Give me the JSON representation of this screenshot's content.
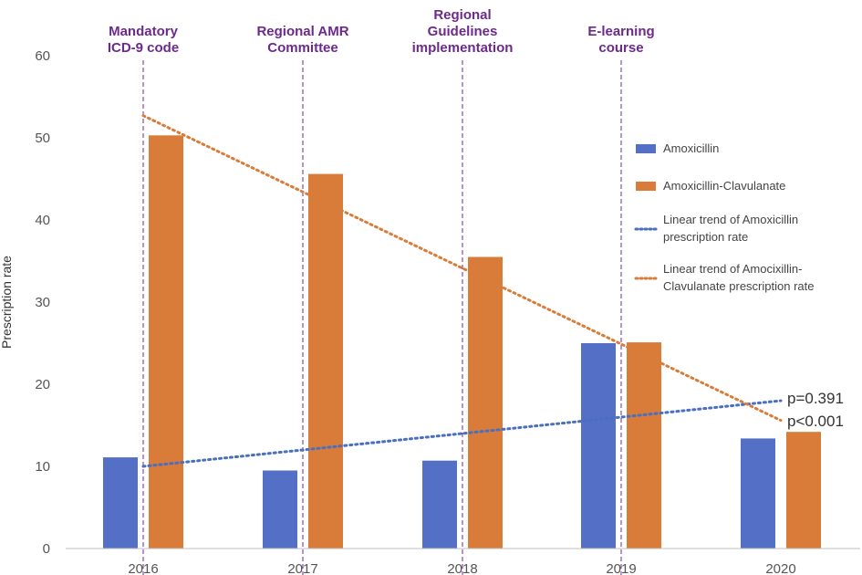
{
  "chart_data": {
    "type": "bar",
    "categories": [
      "2016",
      "2017",
      "2018",
      "2019",
      "2020"
    ],
    "series": [
      {
        "name": "Amoxicillin",
        "color": "#5470c6",
        "values": [
          11.1,
          9.5,
          10.7,
          25.0,
          13.4
        ]
      },
      {
        "name": "Amoxicillin-Clavulanate",
        "color": "#d97c3a",
        "values": [
          50.3,
          45.6,
          35.5,
          25.1,
          14.2
        ]
      }
    ],
    "trends": [
      {
        "name": "Linear trend of Amoxicillin prescription rate",
        "line1": "Linear trend of Amoxicillin",
        "line2": "prescription rate",
        "color": "#4a6fbf",
        "start": 10.0,
        "end": 18.0,
        "pvalue": "p=0.391"
      },
      {
        "name": "Linear trend of Amocixillin-Clavulanate prescription rate",
        "line1": "Linear trend of Amocixillin-",
        "line2": "Clavulanate prescription rate",
        "color": "#d97c3a",
        "start": 52.7,
        "end": 15.6,
        "pvalue": "p<0.001"
      }
    ],
    "events": [
      {
        "category": "2016",
        "lines": [
          "Mandatory",
          "ICD-9 code"
        ]
      },
      {
        "category": "2017",
        "lines": [
          "Regional AMR",
          "Committee"
        ]
      },
      {
        "category": "2018",
        "lines": [
          "Regional",
          "Guidelines",
          "implementation"
        ]
      },
      {
        "category": "2019",
        "lines": [
          "E-learning",
          "course"
        ]
      }
    ],
    "title": "",
    "xlabel": "",
    "ylabel": "Prescription rate",
    "ylim": [
      0,
      60
    ],
    "yticks": [
      0,
      10,
      20,
      30,
      40,
      50,
      60
    ],
    "event_color": "#6b2a8c",
    "grid": false,
    "legend": "right"
  }
}
